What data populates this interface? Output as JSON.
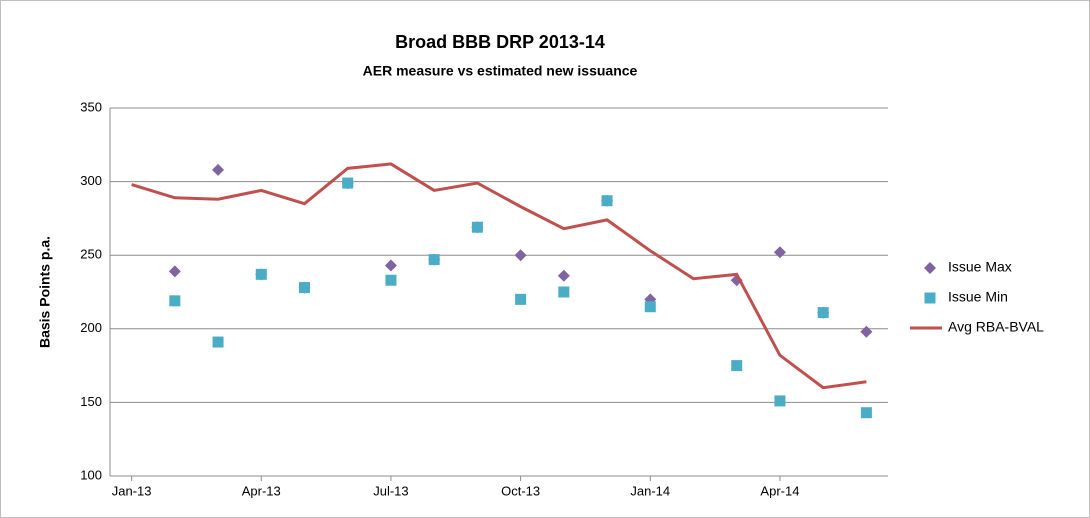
{
  "chart_data": {
    "type": "line",
    "title": "Broad BBB DRP 2013-14",
    "subtitle": "AER measure vs estimated new issuance",
    "y_label": "Basis Points p.a.",
    "categories": [
      "Jan-13",
      null,
      null,
      "Apr-13",
      null,
      null,
      "Jul-13",
      null,
      null,
      "Oct-13",
      null,
      null,
      "Jan-14",
      null,
      null,
      "Apr-14",
      null,
      null
    ],
    "series": [
      {
        "name": "Issue Max",
        "type": "scatter",
        "marker": "diamond",
        "color": "#8064a2",
        "values": [
          null,
          239,
          308,
          237,
          228,
          299,
          243,
          247,
          269,
          250,
          236,
          287,
          220,
          null,
          233,
          252,
          211,
          198
        ]
      },
      {
        "name": "Issue Min",
        "type": "scatter",
        "marker": "square",
        "color": "#4bacc6",
        "values": [
          null,
          219,
          191,
          237,
          228,
          299,
          233,
          247,
          269,
          220,
          225,
          287,
          215,
          null,
          175,
          151,
          211,
          143
        ]
      },
      {
        "name": "Avg RBA-BVAL",
        "type": "line",
        "color": "#c0504d",
        "values": [
          298,
          289,
          288,
          294,
          285,
          309,
          312,
          294,
          299,
          283,
          268,
          274,
          253,
          234,
          237,
          182,
          160,
          164
        ]
      }
    ],
    "ylim": [
      100,
      350
    ],
    "yticks": [
      100,
      150,
      200,
      250,
      300,
      350
    ],
    "grid": true,
    "legend": "right"
  }
}
